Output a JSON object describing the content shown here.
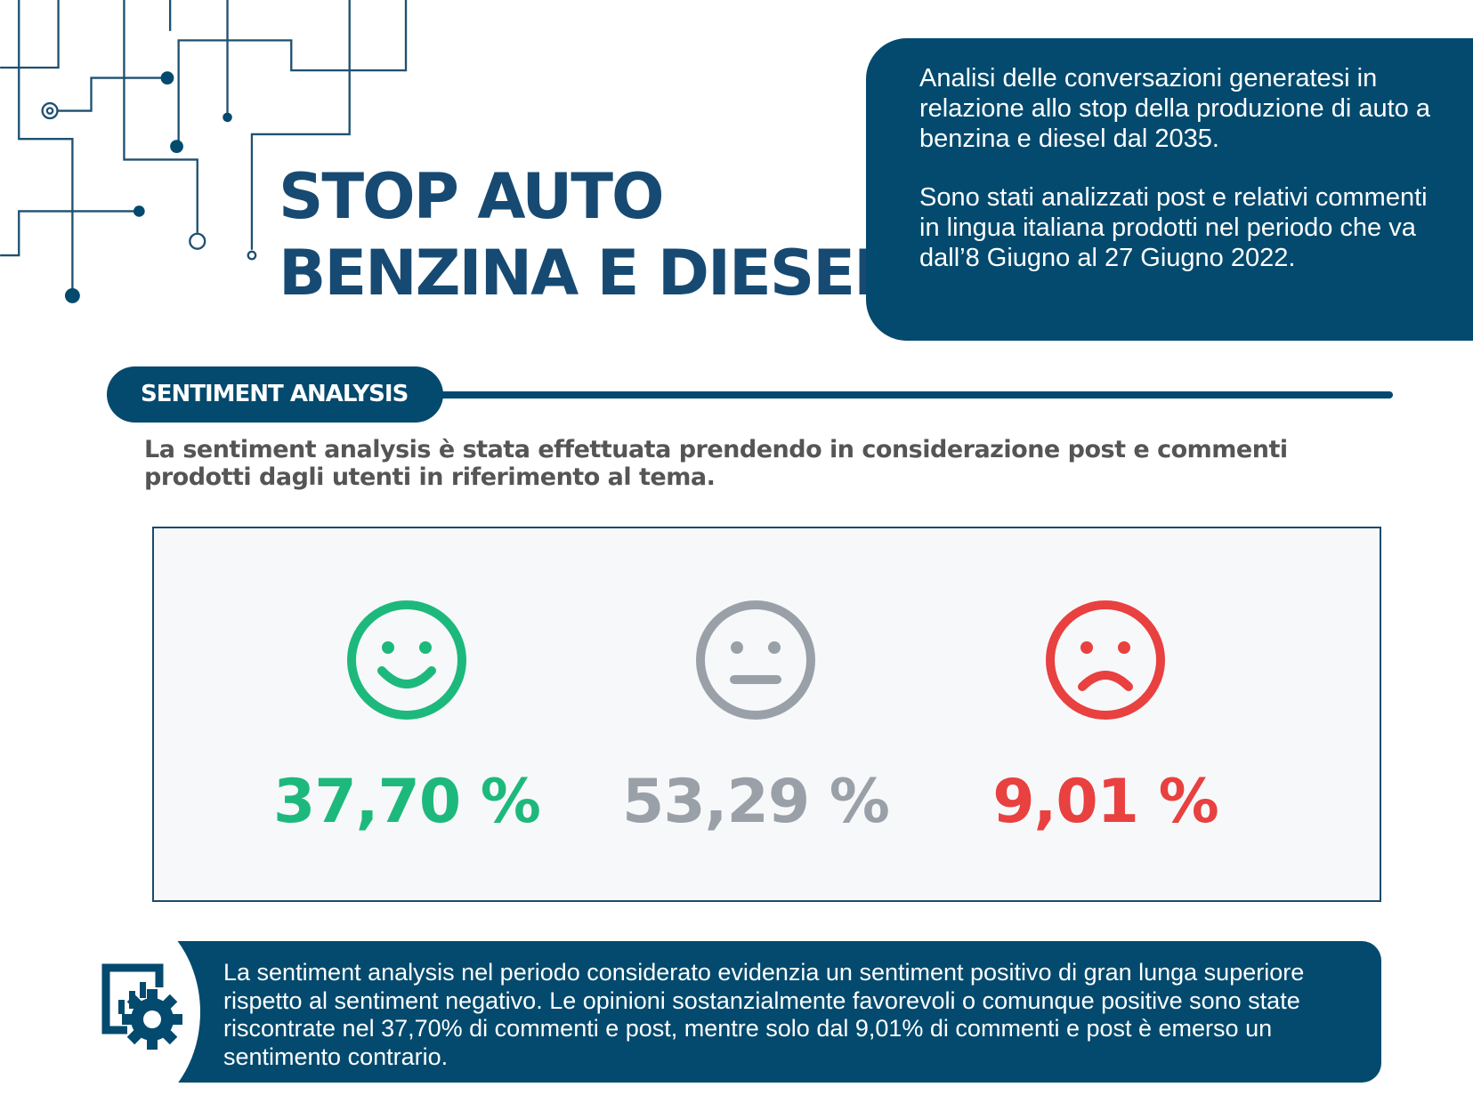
{
  "title": {
    "line1": "STOP AUTO",
    "line2": "BENZINA E DIESEL"
  },
  "intro": {
    "p1": "Analisi delle conversazioni generatesi in relazione allo stop della produzione di auto a benzina e diesel dal 2035.",
    "p2": "Sono stati analizzati post e relativi commenti in lingua italiana prodotti nel periodo che va dall’8 Giugno al 27 Giugno 2022."
  },
  "section": {
    "label": "SENTIMENT ANALYSIS",
    "lead": "La sentiment analysis è stata effettuata prendendo in considerazione post e commenti prodotti dagli utenti in riferimento al tema."
  },
  "sentiment": [
    {
      "name": "positive",
      "icon": "smile-icon",
      "value": "37,70 %",
      "color": "#1db97c"
    },
    {
      "name": "neutral",
      "icon": "neutral-face-icon",
      "value": "53,29 %",
      "color": "#9aa0a8"
    },
    {
      "name": "negative",
      "icon": "frown-icon",
      "value": "9,01 %",
      "color": "#e94040"
    }
  ],
  "summary": "La sentiment analysis nel periodo considerato evidenzia un sentiment positivo di gran lunga superiore rispetto al sentiment negativo. Le opinioni sostanzialmente favorevoli o comunque positive sono state riscontrate nel 37,70% di commenti e post, mentre solo dal 9,01% di commenti e post è emerso un sentimento contrario.",
  "colors": {
    "navy": "#034a6e",
    "title": "#174a72"
  }
}
